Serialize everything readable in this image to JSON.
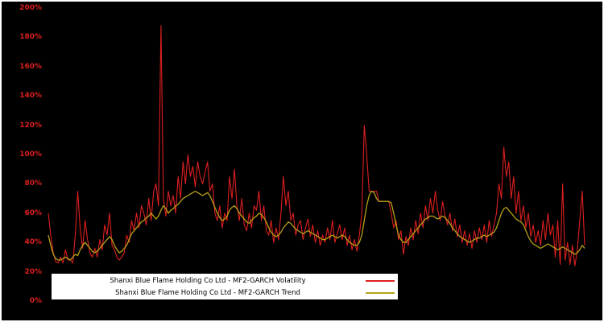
{
  "colors": {
    "background": "#000000",
    "frame": "#ffffff",
    "tick_label": "#dc1f1f",
    "volatility_line": "#dc1f1f",
    "trend_line": "#b8a118",
    "legend_background": "#ffffff",
    "legend_text": "#000000"
  },
  "chart_data": {
    "type": "line",
    "title": "",
    "xlabel": "",
    "ylabel": "",
    "ylim": [
      0,
      200
    ],
    "y_ticks": [
      0,
      20,
      40,
      60,
      80,
      100,
      120,
      140,
      160,
      180,
      200
    ],
    "y_tick_labels": [
      "0%",
      "20%",
      "40%",
      "60%",
      "80%",
      "100%",
      "120%",
      "140%",
      "160%",
      "180%",
      "200%"
    ],
    "grid": false,
    "legend_position": "bottom-left",
    "series": [
      {
        "name": "Shanxi Blue Flame Holding Co Ltd - MF2-GARCH Volatility",
        "color": "#dc1f1f",
        "width": 1.1,
        "values": [
          60,
          45,
          33,
          27,
          26,
          30,
          26,
          35,
          28,
          28,
          26,
          45,
          75,
          50,
          36,
          55,
          42,
          33,
          30,
          36,
          30,
          42,
          35,
          52,
          45,
          60,
          38,
          35,
          30,
          28,
          30,
          33,
          45,
          40,
          55,
          48,
          60,
          50,
          65,
          60,
          52,
          70,
          55,
          75,
          80,
          65,
          188,
          70,
          58,
          75,
          65,
          72,
          60,
          85,
          70,
          95,
          80,
          100,
          85,
          92,
          78,
          95,
          85,
          80,
          88,
          95,
          75,
          80,
          60,
          55,
          65,
          50,
          60,
          55,
          85,
          70,
          90,
          65,
          55,
          70,
          52,
          48,
          60,
          50,
          65,
          62,
          75,
          55,
          65,
          48,
          45,
          55,
          40,
          50,
          42,
          60,
          85,
          65,
          75,
          55,
          60,
          45,
          52,
          55,
          42,
          50,
          56,
          44,
          52,
          40,
          48,
          38,
          45,
          40,
          50,
          42,
          55,
          40,
          46,
          52,
          42,
          50,
          38,
          45,
          35,
          42,
          34,
          45,
          60,
          120,
          100,
          75,
          75,
          75,
          75,
          68,
          68,
          68,
          68,
          68,
          60,
          50,
          55,
          42,
          48,
          32,
          44,
          38,
          50,
          42,
          55,
          46,
          60,
          50,
          65,
          55,
          70,
          60,
          75,
          62,
          55,
          68,
          58,
          52,
          60,
          48,
          56,
          44,
          52,
          40,
          48,
          38,
          46,
          36,
          48,
          40,
          50,
          42,
          52,
          40,
          55,
          44,
          52,
          60,
          80,
          70,
          105,
          85,
          95,
          70,
          85,
          60,
          75,
          55,
          65,
          50,
          60,
          44,
          52,
          40,
          48,
          38,
          55,
          42,
          60,
          45,
          52,
          30,
          55,
          25,
          80,
          28,
          40,
          25,
          38,
          24,
          35,
          55,
          75,
          38
        ]
      },
      {
        "name": "Shanxi Blue Flame Holding Co Ltd - MF2-GARCH Trend",
        "color": "#b8a118",
        "width": 1.3,
        "values": [
          45,
          38,
          32,
          29,
          28,
          28,
          29,
          30,
          29,
          28,
          30,
          32,
          31,
          35,
          38,
          40,
          38,
          36,
          34,
          33,
          34,
          36,
          38,
          40,
          42,
          44,
          42,
          38,
          35,
          33,
          34,
          36,
          38,
          42,
          46,
          48,
          50,
          52,
          54,
          55,
          57,
          58,
          60,
          58,
          56,
          58,
          62,
          65,
          63,
          60,
          62,
          63,
          65,
          66,
          68,
          70,
          71,
          72,
          73,
          74,
          75,
          74,
          73,
          72,
          73,
          74,
          72,
          68,
          64,
          60,
          57,
          55,
          56,
          58,
          62,
          64,
          65,
          63,
          60,
          58,
          56,
          54,
          53,
          55,
          57,
          58,
          60,
          59,
          57,
          54,
          50,
          47,
          45,
          44,
          45,
          47,
          50,
          52,
          54,
          53,
          51,
          49,
          48,
          47,
          46,
          47,
          48,
          47,
          46,
          45,
          44,
          43,
          42,
          42,
          43,
          44,
          45,
          44,
          43,
          44,
          45,
          44,
          42,
          40,
          39,
          38,
          38,
          40,
          45,
          55,
          65,
          72,
          75,
          74,
          70,
          68,
          68,
          68,
          68,
          68,
          67,
          60,
          52,
          45,
          42,
          40,
          40,
          42,
          44,
          46,
          48,
          50,
          52,
          54,
          56,
          57,
          58,
          58,
          57,
          56,
          57,
          58,
          57,
          55,
          53,
          50,
          48,
          46,
          44,
          43,
          42,
          41,
          40,
          41,
          42,
          43,
          43,
          44,
          45,
          44,
          45,
          46,
          47,
          50,
          55,
          60,
          63,
          64,
          62,
          60,
          58,
          56,
          55,
          54,
          52,
          48,
          44,
          41,
          39,
          38,
          37,
          36,
          37,
          38,
          39,
          38,
          37,
          36,
          35,
          36,
          37,
          36,
          35,
          34,
          33,
          32,
          33,
          35,
          38,
          36
        ]
      }
    ]
  },
  "legend": {
    "items": [
      {
        "label": "Shanxi Blue Flame Holding Co Ltd - MF2-GARCH Volatility",
        "color": "#dc1f1f"
      },
      {
        "label": "Shanxi Blue Flame Holding Co Ltd - MF2-GARCH Trend",
        "color": "#b8a118"
      }
    ]
  }
}
